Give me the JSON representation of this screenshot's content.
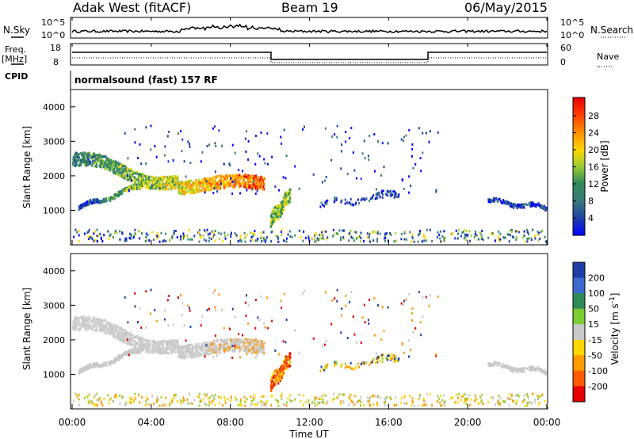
{
  "header": {
    "site": "Adak West (fitACF)",
    "beam": "Beam 19",
    "date": "06/May/2015"
  },
  "mini_panels": {
    "nsky_label": "N.Sky",
    "nsearch_label": "N.Search",
    "freq_label_1": "Freq.",
    "freq_label_2": "[MHz]",
    "nave_label": "Nave",
    "cpid_label": "CPID",
    "noise_ticks": [
      "10^5",
      "10^0"
    ],
    "noise_right_ticks": [
      "10^5",
      "10^0"
    ],
    "freq_ticks": [
      "18",
      "8"
    ],
    "nave_ticks": [
      "60",
      "0"
    ],
    "cpid_text": "normalsound (fast) 157 RF"
  },
  "chart_data": [
    {
      "type": "heatmap",
      "name": "power",
      "ylabel": "Slant Range [km]",
      "ylim": [
        0,
        4500
      ],
      "yticks": [
        1000,
        2000,
        3000,
        4000
      ],
      "colorbar": {
        "label": "Power [dB]",
        "ticks": [
          "28",
          "24",
          "20",
          "16",
          "12",
          "8",
          "4"
        ],
        "colors": [
          "#e60000",
          "#ff5a00",
          "#ff9a00",
          "#ffd700",
          "#9acd32",
          "#2e8b57",
          "#3a7a7a",
          "#1e3fa8",
          "#0000ff"
        ]
      },
      "features": [
        {
          "feature": "band",
          "start_hour": 0.0,
          "end_hour": 9.7,
          "range_start_km": 2500,
          "range_mid_km": 1800,
          "range_end_km": 1750
        },
        {
          "feature": "band",
          "start_hour": 0.3,
          "end_hour": 3.5,
          "range_start_km": 1100,
          "range_end_km": 1750
        },
        {
          "feature": "patch",
          "start_hour": 10.0,
          "end_hour": 11.0,
          "range_start_km": 700,
          "range_end_km": 1500
        },
        {
          "feature": "band",
          "start_hour": 12.5,
          "end_hour": 16.5,
          "range_start_km": 1200,
          "range_end_km": 1500
        },
        {
          "feature": "band",
          "start_hour": 21.0,
          "end_hour": 24.0,
          "range_start_km": 1300,
          "range_end_km": 1100
        }
      ]
    },
    {
      "type": "heatmap",
      "name": "velocity",
      "ylabel": "Slant Range [km]",
      "xlabel": "Time UT",
      "xticks": [
        "00:00",
        "04:00",
        "08:00",
        "12:00",
        "16:00",
        "20:00",
        "00:00"
      ],
      "ylim": [
        0,
        4500
      ],
      "yticks": [
        1000,
        2000,
        3000,
        4000
      ],
      "colorbar": {
        "label": "Velocity [m s^-1]",
        "ticks": [
          "200",
          "100",
          "50",
          "15",
          "-15",
          "-50",
          "-100",
          "-200"
        ],
        "colors": [
          "#1e3fa8",
          "#3a6ad0",
          "#2e8b57",
          "#7ccd32",
          "#c8c8c8",
          "#ffd700",
          "#ff9a00",
          "#ff5a00",
          "#e60000"
        ]
      }
    }
  ]
}
